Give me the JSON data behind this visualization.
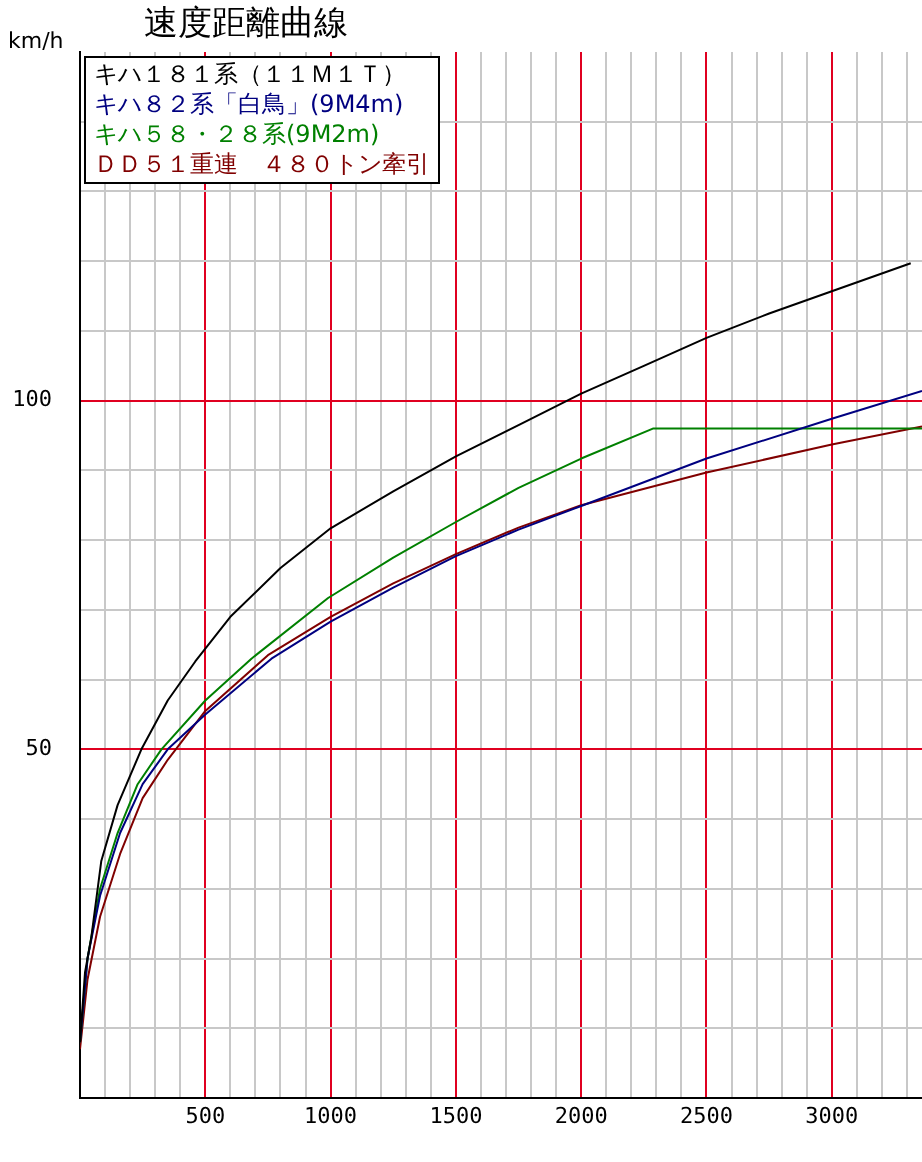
{
  "chart_data": {
    "type": "line",
    "title": "速度距離曲線",
    "ylabel": "km/h",
    "legend": "top left",
    "grid": true,
    "xlim": [
      0,
      3360
    ],
    "ylim": [
      0,
      150
    ],
    "xticks": [
      {
        "value": 100,
        "label": null
      },
      {
        "value": 200,
        "label": null
      },
      {
        "value": 300,
        "label": null
      },
      {
        "value": 400,
        "label": null
      },
      500,
      {
        "value": 600,
        "label": null
      },
      {
        "value": 700,
        "label": null
      },
      {
        "value": 800,
        "label": null
      },
      {
        "value": 900,
        "label": null
      },
      1000,
      {
        "value": 1100,
        "label": null
      },
      {
        "value": 1200,
        "label": null
      },
      {
        "value": 1300,
        "label": null
      },
      {
        "value": 1400,
        "label": null
      },
      1500,
      {
        "value": 1600,
        "label": null
      },
      {
        "value": 1700,
        "label": null
      },
      {
        "value": 1800,
        "label": null
      },
      {
        "value": 1900,
        "label": null
      },
      2000,
      {
        "value": 2100,
        "label": null
      },
      {
        "value": 2200,
        "label": null
      },
      {
        "value": 2300,
        "label": null
      },
      {
        "value": 2400,
        "label": null
      },
      2500,
      {
        "value": 2600,
        "label": null
      },
      {
        "value": 2700,
        "label": null
      },
      {
        "value": 2800,
        "label": null
      },
      {
        "value": 2900,
        "label": null
      },
      3000,
      {
        "value": 3100,
        "label": null
      },
      {
        "value": 3200,
        "label": null
      },
      {
        "value": 3300,
        "label": null
      }
    ],
    "yticks": [
      {
        "value": 10,
        "label": null
      },
      {
        "value": 20,
        "label": null
      },
      {
        "value": 30,
        "label": null
      },
      {
        "value": 40,
        "label": null
      },
      50,
      {
        "value": 60,
        "label": null
      },
      {
        "value": 70,
        "label": null
      },
      {
        "value": 80,
        "label": null
      },
      {
        "value": 90,
        "label": null
      },
      100,
      {
        "value": 110,
        "label": null
      },
      {
        "value": 120,
        "label": null
      },
      {
        "value": 130,
        "label": null
      },
      {
        "value": 140,
        "label": null
      }
    ],
    "series": [
      {
        "name": "キハ１８１系（１１Ｍ１Ｔ）",
        "color": "#000000",
        "x": [
          0,
          20,
          45,
          85,
          150,
          245,
          350,
          460,
          600,
          800,
          1000,
          1250,
          1500,
          1750,
          2000,
          2250,
          2500,
          2750,
          3000,
          3315
        ],
        "values": [
          8,
          18,
          23,
          34,
          42,
          50,
          57,
          62.6,
          69,
          76,
          81.7,
          87,
          92,
          96.5,
          101,
          105,
          109,
          112.5,
          115.7,
          119.7
        ]
      },
      {
        "name": "キハ８２系「白鳥」(9M4m)",
        "color": "#000080",
        "x": [
          0,
          30,
          80,
          160,
          250,
          350,
          500,
          764,
          1000,
          1250,
          1500,
          1750,
          2000,
          2500,
          3000,
          3360
        ],
        "values": [
          8,
          20,
          29,
          38,
          45,
          50,
          55,
          63,
          68.3,
          73.2,
          77.7,
          81.5,
          84.9,
          91.7,
          97.4,
          101.4
        ]
      },
      {
        "name": "キハ５８・２８系(9M2m)",
        "color": "#008000",
        "x": [
          0,
          30,
          80,
          150,
          230,
          325,
          500,
          684,
          990,
          1250,
          1500,
          1750,
          2000,
          2286,
          3360
        ],
        "values": [
          8,
          20,
          30,
          38,
          45,
          50,
          57,
          63,
          71.7,
          77.5,
          82.6,
          87.5,
          91.7,
          96,
          96
        ]
      },
      {
        "name": "ＤＤ５１重連　４８０トン牽引",
        "color": "#800000",
        "x": [
          0,
          30,
          80,
          160,
          250,
          350,
          500,
          750,
          1000,
          1250,
          1500,
          1750,
          2000,
          2500,
          3000,
          3360
        ],
        "values": [
          7,
          17,
          26,
          35,
          43,
          48.5,
          55.5,
          63.5,
          69,
          73.8,
          78,
          81.8,
          85,
          89.7,
          93.7,
          96.3
        ]
      }
    ]
  }
}
